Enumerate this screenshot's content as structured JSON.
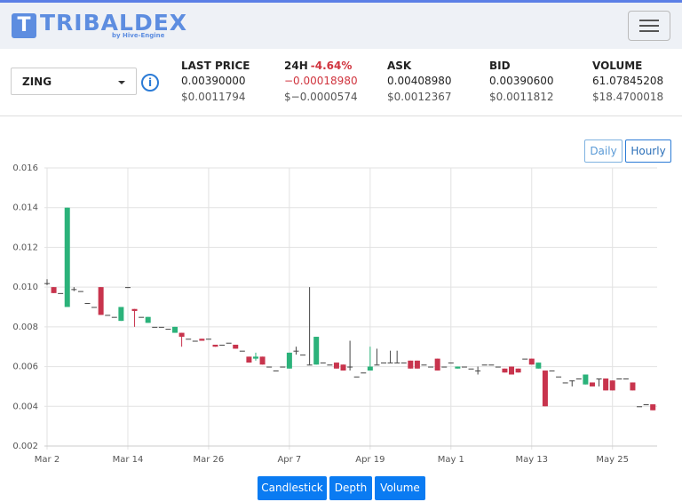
{
  "header": {
    "logo_icon": "T",
    "logo": "TRIBALDEX",
    "logo_sub": "by Hive-Engine"
  },
  "market": {
    "token": "ZING",
    "stats": [
      {
        "label": "LAST PRICE",
        "value": "0.00390000",
        "usd": "$0.0011794"
      },
      {
        "label": "24H",
        "change": "-4.64%",
        "value": "−0.00018980",
        "usd": "$−0.0000574"
      },
      {
        "label": "ASK",
        "value": "0.00408980",
        "usd": "$0.0012367"
      },
      {
        "label": "BID",
        "value": "0.00390600",
        "usd": "$0.0011812"
      },
      {
        "label": "VOLUME",
        "value": "61.07845208",
        "usd": "$18.4700018"
      }
    ]
  },
  "chart_controls": [
    "Daily",
    "Hourly"
  ],
  "chart_tabs": [
    "Candlestick",
    "Depth",
    "Volume"
  ],
  "chart_data": {
    "type": "candlestick",
    "categories": [
      "Mar 2",
      null,
      null,
      null,
      null,
      null,
      null,
      null,
      null,
      null,
      null,
      null,
      "Mar 14",
      null,
      null,
      null,
      null,
      null,
      null,
      null,
      null,
      null,
      null,
      null,
      "Mar 26",
      null,
      null,
      null,
      null,
      null,
      null,
      null,
      null,
      null,
      null,
      null,
      "Apr 7",
      null,
      null,
      null,
      null,
      null,
      null,
      null,
      null,
      null,
      null,
      null,
      "Apr 19",
      null,
      null,
      null,
      null,
      null,
      null,
      null,
      null,
      null,
      null,
      null,
      "May 1",
      null,
      null,
      null,
      null,
      null,
      null,
      null,
      null,
      null,
      null,
      null,
      "May 13",
      null,
      null,
      null,
      null,
      null,
      null,
      null,
      null,
      null,
      null,
      null,
      "May 25",
      null,
      null,
      null,
      null,
      null,
      null
    ],
    "open": [
      0.0102,
      0.01,
      0.0097,
      0.009,
      0.0099,
      0.0098,
      0.0092,
      0.009,
      0.01,
      0.0086,
      0.0085,
      0.0083,
      0.01,
      0.0089,
      0.0085,
      0.0082,
      0.008,
      0.008,
      0.0079,
      0.0077,
      0.0077,
      0.0074,
      0.0073,
      0.0074,
      0.0074,
      0.0071,
      0.0071,
      0.0072,
      0.0071,
      0.0068,
      0.0065,
      0.0064,
      0.0065,
      0.006,
      0.0058,
      0.006,
      0.0059,
      0.0068,
      0.0066,
      0.0061,
      0.0061,
      0.0062,
      0.0061,
      0.0062,
      0.0061,
      0.006,
      0.0055,
      0.0057,
      0.0058,
      0.0061,
      0.0062,
      0.0062,
      0.0062,
      0.0062,
      0.0063,
      0.0063,
      0.0061,
      0.006,
      0.0064,
      0.006,
      0.0062,
      0.0059,
      0.006,
      0.0059,
      0.0058,
      0.0061,
      0.0061,
      0.006,
      0.0059,
      0.006,
      0.0059,
      0.0064,
      0.0064,
      0.0059,
      0.0058,
      0.0058,
      0.0055,
      0.0052,
      0.0053,
      0.0054,
      0.0051,
      0.0052,
      0.0054,
      0.0054,
      0.0053,
      0.0054,
      0.0054,
      0.0052,
      0.004,
      0.0041,
      0.0041
    ],
    "high": [
      0.0104,
      0.01,
      0.0097,
      0.014,
      0.01,
      0.0098,
      0.0092,
      0.009,
      0.01,
      0.0086,
      0.0085,
      0.009,
      0.01,
      0.0089,
      0.0085,
      0.0085,
      0.008,
      0.008,
      0.0079,
      0.008,
      0.0077,
      0.0074,
      0.0073,
      0.0074,
      0.0074,
      0.0071,
      0.0071,
      0.0072,
      0.0071,
      0.0068,
      0.0065,
      0.0067,
      0.0065,
      0.006,
      0.0058,
      0.006,
      0.0067,
      0.007,
      0.0066,
      0.01,
      0.0075,
      0.0062,
      0.0061,
      0.0062,
      0.0061,
      0.0073,
      0.0055,
      0.0057,
      0.007,
      0.0069,
      0.0062,
      0.0068,
      0.0068,
      0.0062,
      0.0063,
      0.0063,
      0.0061,
      0.006,
      0.0064,
      0.006,
      0.0062,
      0.006,
      0.006,
      0.0059,
      0.006,
      0.0061,
      0.0061,
      0.006,
      0.0059,
      0.006,
      0.0059,
      0.0064,
      0.0064,
      0.0062,
      0.0058,
      0.0058,
      0.0055,
      0.0052,
      0.0053,
      0.0054,
      0.0056,
      0.0052,
      0.0054,
      0.0054,
      0.0053,
      0.0054,
      0.0054,
      0.0052,
      0.004,
      0.0041,
      0.0041
    ],
    "low": [
      0.0101,
      0.0097,
      0.0097,
      0.009,
      0.0098,
      0.0098,
      0.0092,
      0.009,
      0.0086,
      0.0086,
      0.0085,
      0.0083,
      0.01,
      0.008,
      0.0085,
      0.0082,
      0.008,
      0.008,
      0.0079,
      0.0077,
      0.007,
      0.0074,
      0.0073,
      0.0073,
      0.0074,
      0.007,
      0.0071,
      0.0072,
      0.0069,
      0.0068,
      0.0062,
      0.0063,
      0.0061,
      0.006,
      0.0058,
      0.006,
      0.0059,
      0.0066,
      0.0066,
      0.0061,
      0.0061,
      0.0062,
      0.0061,
      0.0059,
      0.0058,
      0.0058,
      0.0055,
      0.0057,
      0.0058,
      0.0061,
      0.0062,
      0.0062,
      0.0062,
      0.0062,
      0.0059,
      0.0059,
      0.0061,
      0.006,
      0.0058,
      0.006,
      0.0062,
      0.0059,
      0.006,
      0.0059,
      0.0056,
      0.0061,
      0.0061,
      0.006,
      0.0057,
      0.0056,
      0.0057,
      0.0064,
      0.0061,
      0.0059,
      0.004,
      0.0058,
      0.0055,
      0.0052,
      0.005,
      0.0054,
      0.0051,
      0.005,
      0.005,
      0.0048,
      0.0048,
      0.0054,
      0.0054,
      0.0048,
      0.004,
      0.0041,
      0.0038
    ],
    "close": [
      0.0102,
      0.0097,
      0.0097,
      0.014,
      0.0099,
      0.0098,
      0.0092,
      0.009,
      0.0086,
      0.0086,
      0.0085,
      0.009,
      0.01,
      0.0088,
      0.0085,
      0.0085,
      0.008,
      0.008,
      0.0079,
      0.008,
      0.0075,
      0.0074,
      0.0073,
      0.0073,
      0.0074,
      0.007,
      0.0071,
      0.0072,
      0.0069,
      0.0068,
      0.0062,
      0.0065,
      0.0061,
      0.006,
      0.0058,
      0.006,
      0.0067,
      0.0068,
      0.0066,
      0.0061,
      0.0075,
      0.0062,
      0.0061,
      0.0059,
      0.0058,
      0.006,
      0.0055,
      0.0057,
      0.006,
      0.0061,
      0.0062,
      0.0062,
      0.0062,
      0.0062,
      0.0059,
      0.0059,
      0.0061,
      0.006,
      0.0058,
      0.006,
      0.0062,
      0.006,
      0.006,
      0.0059,
      0.0058,
      0.0061,
      0.0061,
      0.006,
      0.0057,
      0.0056,
      0.0057,
      0.0064,
      0.0061,
      0.0062,
      0.004,
      0.0058,
      0.0055,
      0.0052,
      0.0053,
      0.0054,
      0.0056,
      0.005,
      0.0054,
      0.0048,
      0.0048,
      0.0054,
      0.0054,
      0.0048,
      0.004,
      0.0041,
      0.0038
    ],
    "up_color": "#2bb27a",
    "down_color": "#c8344d",
    "ylim": [
      0.002,
      0.016
    ],
    "yticks": [
      0.002,
      0.004,
      0.006,
      0.008,
      {
        "value": 0.01,
        "label": "0.010"
      },
      0.012,
      0.014,
      0.016
    ],
    "grid": true
  }
}
